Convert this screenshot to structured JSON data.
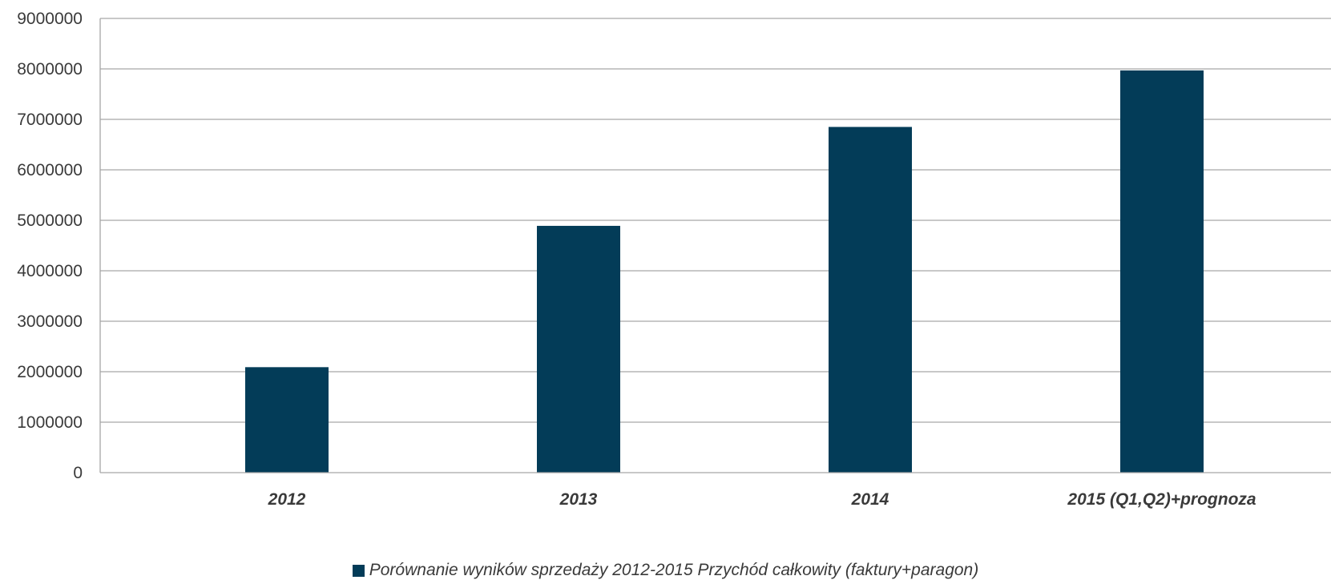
{
  "chart_data": {
    "type": "bar",
    "categories": [
      "2012",
      "2013",
      "2014",
      "2015 (Q1,Q2)+prognoza"
    ],
    "series": [
      {
        "name": "Porównanie wyników sprzedaży 2012-2015 Przychód całkowity (faktury+paragon)",
        "values": [
          2090000,
          4890000,
          6850000,
          7970000
        ]
      }
    ],
    "title": "",
    "xlabel": "",
    "ylabel": "",
    "ylim": [
      0,
      9000000
    ],
    "yticks": [
      "0",
      "1000000",
      "2000000",
      "3000000",
      "4000000",
      "5000000",
      "6000000",
      "7000000",
      "8000000",
      "9000000"
    ],
    "grid": true,
    "legend_position": "bottom",
    "colors": {
      "bar": "#033C58",
      "grid": "#A6A6A6",
      "axis": "#A6A6A6",
      "text": "#3a3a3a"
    }
  }
}
